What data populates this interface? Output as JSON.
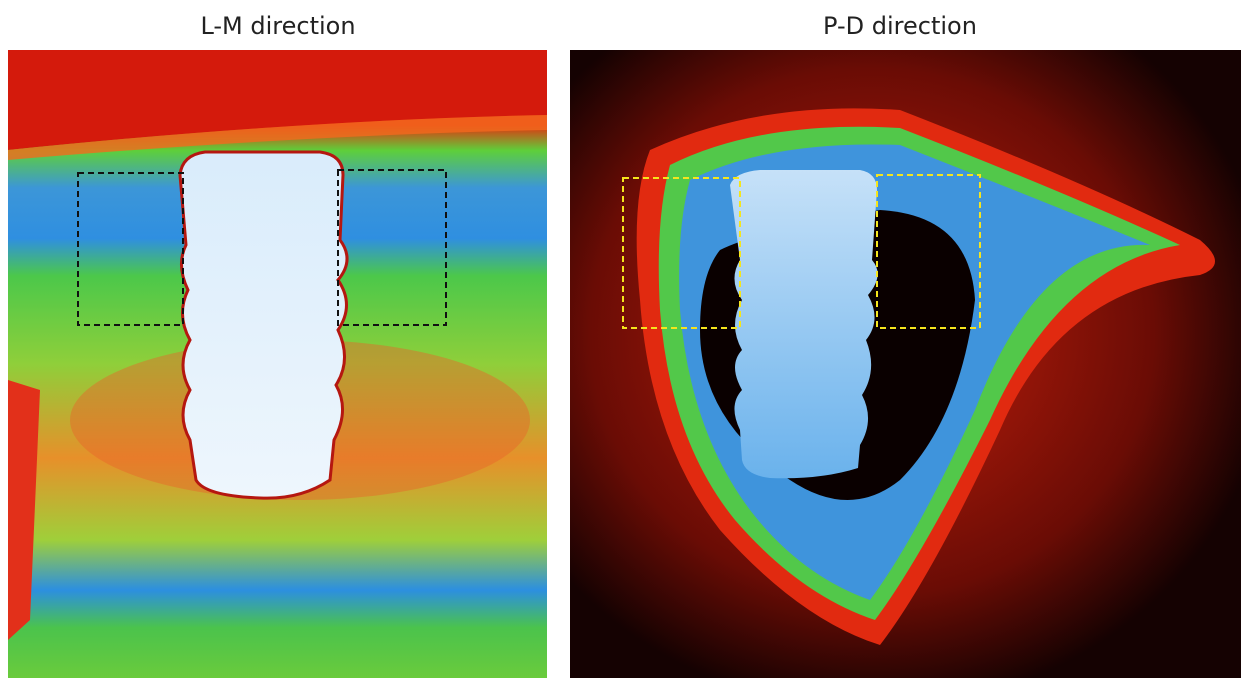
{
  "panels": [
    {
      "title": "L-M direction"
    },
    {
      "title": "P-D direction"
    }
  ]
}
